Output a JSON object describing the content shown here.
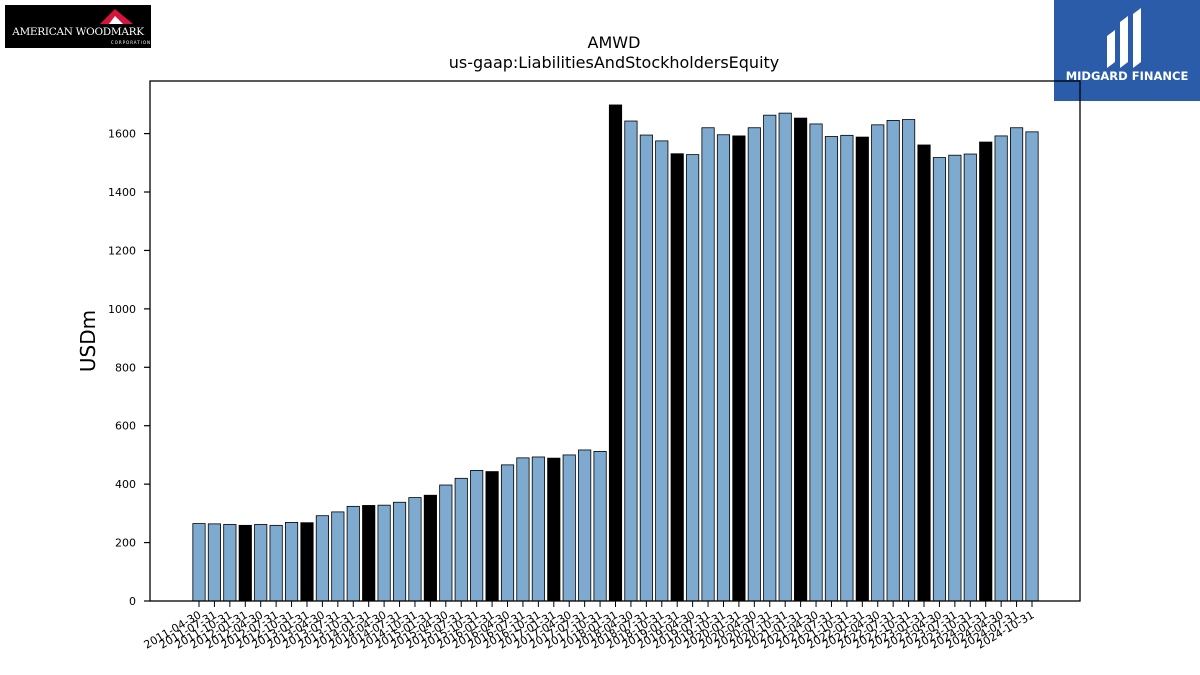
{
  "logos": {
    "left": {
      "brand": "AMERICAN WOODMARK",
      "sub": "CORPORATION",
      "accent": "#d7143c"
    },
    "right": {
      "name": "MIDGARD FINANCE",
      "bg": "#2a5caa"
    }
  },
  "chart_data": {
    "type": "bar",
    "title": "AMWD",
    "subtitle": "us-gaap:LiabilitiesAndStockholdersEquity",
    "xlabel": "",
    "ylabel": "USDm",
    "ylim": [
      0,
      1780
    ],
    "yticks": [
      0,
      200,
      400,
      600,
      800,
      1000,
      1200,
      1400,
      1600
    ],
    "grid": false,
    "colors": {
      "regular": "#7eaacf",
      "highlight": "#000000",
      "edge": "#000000"
    },
    "categories": [
      "2011-04-30",
      "2011-07-31",
      "2011-10-31",
      "2012-01-31",
      "2012-04-30",
      "2012-07-31",
      "2012-10-31",
      "2013-01-31",
      "2013-04-30",
      "2013-07-31",
      "2013-10-31",
      "2014-01-31",
      "2014-04-30",
      "2014-07-31",
      "2014-10-31",
      "2015-01-31",
      "2015-04-30",
      "2015-07-31",
      "2015-10-31",
      "2016-01-31",
      "2016-04-30",
      "2016-07-31",
      "2016-10-31",
      "2017-01-31",
      "2017-04-30",
      "2017-07-31",
      "2017-10-31",
      "2018-01-31",
      "2018-04-30",
      "2018-07-31",
      "2018-10-31",
      "2019-01-31",
      "2019-04-30",
      "2019-07-31",
      "2019-10-31",
      "2020-01-31",
      "2020-04-30",
      "2020-07-31",
      "2020-10-31",
      "2021-01-31",
      "2021-04-30",
      "2021-07-31",
      "2021-10-31",
      "2022-01-31",
      "2022-04-30",
      "2022-07-31",
      "2022-10-31",
      "2023-01-31",
      "2023-04-30",
      "2023-07-31",
      "2023-10-31",
      "2024-01-31",
      "2024-04-30",
      "2024-07-31",
      "2024-10-31"
    ],
    "values": [
      265,
      264,
      262,
      259,
      262,
      259,
      269,
      268,
      292,
      305,
      324,
      327,
      328,
      338,
      354,
      362,
      397,
      420,
      447,
      443,
      466,
      490,
      493,
      489,
      500,
      517,
      512,
      1698,
      1643,
      1595,
      1575,
      1531,
      1528,
      1620,
      1596,
      1592,
      1620,
      1663,
      1670,
      1653,
      1633,
      1590,
      1594,
      1588,
      1630,
      1645,
      1648,
      1561,
      1518,
      1526,
      1530,
      1571,
      1592,
      1620,
      1606
    ],
    "highlighted": [
      3,
      7,
      11,
      15,
      19,
      23,
      27,
      31,
      35,
      39,
      43,
      47,
      51
    ]
  }
}
